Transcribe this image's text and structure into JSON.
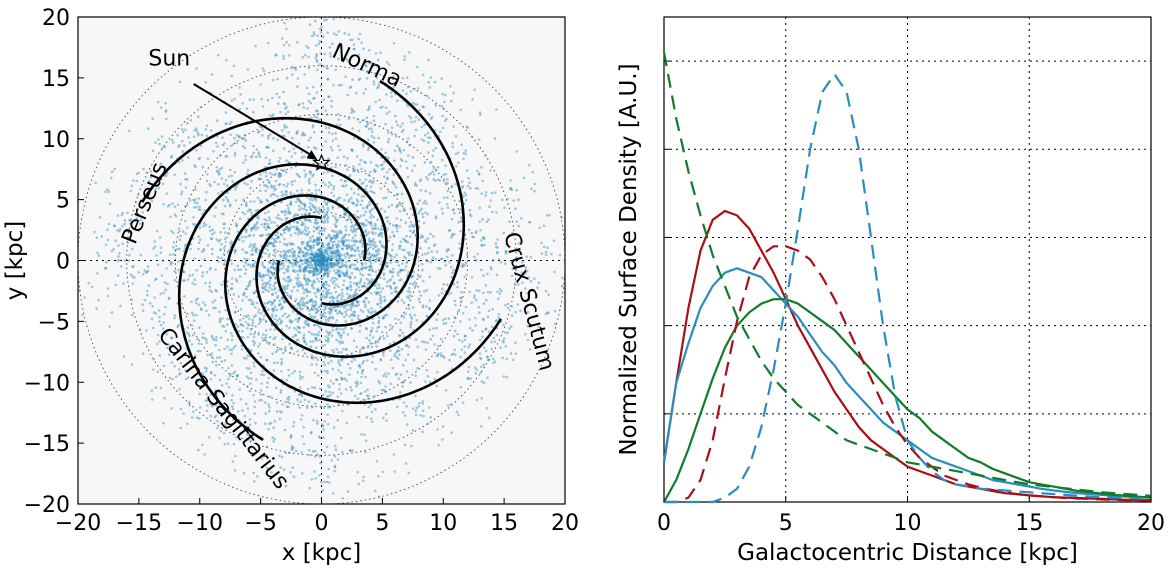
{
  "chart_data": [
    {
      "type": "scatter",
      "xlabel": "x [kpc]",
      "ylabel": "y [kpc]",
      "xlim": [
        -20,
        20
      ],
      "ylim": [
        -20,
        20
      ],
      "xticks": [
        "−20",
        "−15",
        "−10",
        "−5",
        "0",
        "5",
        "10",
        "15",
        "20"
      ],
      "yticks": [
        "20",
        "15",
        "10",
        "5",
        "0",
        "−5",
        "−10",
        "−15",
        "−20"
      ],
      "grid": true,
      "rings_kpc": [
        4,
        8,
        12,
        16,
        20
      ],
      "point_color": "#2b8cbe",
      "arm_color": "#000000",
      "sun": {
        "label": "Sun",
        "x": 0.0,
        "y": 8.0,
        "label_x": -12.5,
        "label_y": 16.0
      },
      "spiral_arms": [
        {
          "name": "Norma",
          "r_start": 3.5,
          "r_end": 15.5
        },
        {
          "name": "Crux Scutum",
          "r_start": 3.5,
          "r_end": 15.5
        },
        {
          "name": "Carina Sagittarius",
          "r_start": 3.5,
          "r_end": 15.5
        },
        {
          "name": "Perseus",
          "r_start": 3.5,
          "r_end": 15.5
        }
      ],
      "arm_labels": [
        {
          "text": "Norma",
          "x": 3.5,
          "y": 15.5,
          "angle": 25
        },
        {
          "text": "Crux Scutum",
          "x": 16.5,
          "y": -3.5,
          "angle": 75
        },
        {
          "text": "Carina Sagittarius",
          "x": -8.5,
          "y": -12.5,
          "angle": 52
        },
        {
          "text": "Perseus",
          "x": -14.0,
          "y": 4.5,
          "angle": -68
        }
      ]
    },
    {
      "type": "line",
      "xlabel": "Galactocentric Distance [kpc]",
      "ylabel": "Normalized Surface Density [A.U.]",
      "xlim": [
        0,
        20
      ],
      "ylim": [
        0,
        1.1
      ],
      "xticks": [
        "0",
        "5",
        "10",
        "15",
        "20"
      ],
      "x_tick_values": [
        0,
        5,
        10,
        15,
        20
      ],
      "y_grid_values": [
        0.2,
        0.4,
        0.6,
        0.8,
        1.0
      ],
      "grid": true,
      "x": [
        0,
        0.5,
        1,
        1.5,
        2,
        2.5,
        3,
        3.5,
        4,
        4.5,
        5,
        5.5,
        6,
        6.5,
        7,
        7.5,
        8,
        8.5,
        9,
        9.5,
        10,
        10.5,
        11,
        11.5,
        12,
        12.5,
        13,
        13.5,
        14,
        14.5,
        15,
        15.5,
        16,
        16.5,
        17,
        17.5,
        18,
        18.5,
        19,
        19.5,
        20
      ],
      "series": [
        {
          "color": "#a50f15",
          "style": "solid",
          "values": [
            0.09,
            0.27,
            0.44,
            0.57,
            0.64,
            0.66,
            0.65,
            0.62,
            0.57,
            0.52,
            0.46,
            0.4,
            0.35,
            0.3,
            0.25,
            0.21,
            0.17,
            0.14,
            0.12,
            0.1,
            0.08,
            0.07,
            0.06,
            0.05,
            0.04,
            0.035,
            0.03,
            0.025,
            0.02,
            0.018,
            0.015,
            0.013,
            0.011,
            0.01,
            0.009,
            0.008,
            0.007,
            0.006,
            0.005,
            0.004,
            0.004
          ]
        },
        {
          "color": "#2b8cbe",
          "style": "solid",
          "values": [
            0.09,
            0.27,
            0.36,
            0.44,
            0.49,
            0.52,
            0.53,
            0.52,
            0.51,
            0.48,
            0.45,
            0.42,
            0.38,
            0.34,
            0.31,
            0.27,
            0.24,
            0.21,
            0.18,
            0.16,
            0.14,
            0.12,
            0.1,
            0.09,
            0.08,
            0.07,
            0.06,
            0.05,
            0.045,
            0.04,
            0.035,
            0.03,
            0.026,
            0.023,
            0.02,
            0.018,
            0.016,
            0.014,
            0.012,
            0.011,
            0.01
          ]
        },
        {
          "color": "#117a2b",
          "style": "solid",
          "values": [
            0.0,
            0.05,
            0.12,
            0.2,
            0.28,
            0.35,
            0.4,
            0.43,
            0.45,
            0.46,
            0.46,
            0.45,
            0.43,
            0.41,
            0.39,
            0.36,
            0.33,
            0.3,
            0.27,
            0.24,
            0.21,
            0.19,
            0.16,
            0.14,
            0.12,
            0.1,
            0.09,
            0.075,
            0.065,
            0.055,
            0.045,
            0.04,
            0.035,
            0.03,
            0.025,
            0.022,
            0.019,
            0.016,
            0.014,
            0.012,
            0.01
          ]
        },
        {
          "color": "#a50f15",
          "style": "dashed",
          "values": [
            0.0,
            0.0,
            0.01,
            0.05,
            0.14,
            0.28,
            0.41,
            0.51,
            0.56,
            0.58,
            0.58,
            0.57,
            0.55,
            0.51,
            0.46,
            0.4,
            0.34,
            0.28,
            0.22,
            0.17,
            0.13,
            0.1,
            0.08,
            0.06,
            0.05,
            0.04,
            0.033,
            0.027,
            0.022,
            0.018,
            0.015,
            0.013,
            0.011,
            0.009,
            0.008,
            0.007,
            0.006,
            0.005,
            0.004,
            0.004,
            0.003
          ]
        },
        {
          "color": "#2b8cbe",
          "style": "dashed",
          "values": [
            0.0,
            0.0,
            0.0,
            0.0,
            0.0,
            0.01,
            0.03,
            0.08,
            0.17,
            0.3,
            0.45,
            0.62,
            0.8,
            0.93,
            0.97,
            0.93,
            0.8,
            0.6,
            0.4,
            0.24,
            0.14,
            0.1,
            0.07,
            0.05,
            0.04,
            0.035,
            0.03,
            0.028,
            0.026,
            0.024,
            0.022,
            0.02,
            0.018,
            0.016,
            0.014,
            0.012,
            0.011,
            0.01,
            0.009,
            0.008,
            0.008
          ]
        },
        {
          "color": "#117a2b",
          "style": "dashed",
          "values": [
            1.02,
            0.87,
            0.75,
            0.65,
            0.56,
            0.49,
            0.42,
            0.37,
            0.32,
            0.28,
            0.25,
            0.22,
            0.2,
            0.18,
            0.16,
            0.14,
            0.13,
            0.12,
            0.11,
            0.1,
            0.09,
            0.085,
            0.08,
            0.075,
            0.07,
            0.065,
            0.06,
            0.055,
            0.05,
            0.045,
            0.04,
            0.037,
            0.034,
            0.031,
            0.028,
            0.025,
            0.022,
            0.02,
            0.018,
            0.016,
            0.014
          ]
        }
      ]
    }
  ]
}
